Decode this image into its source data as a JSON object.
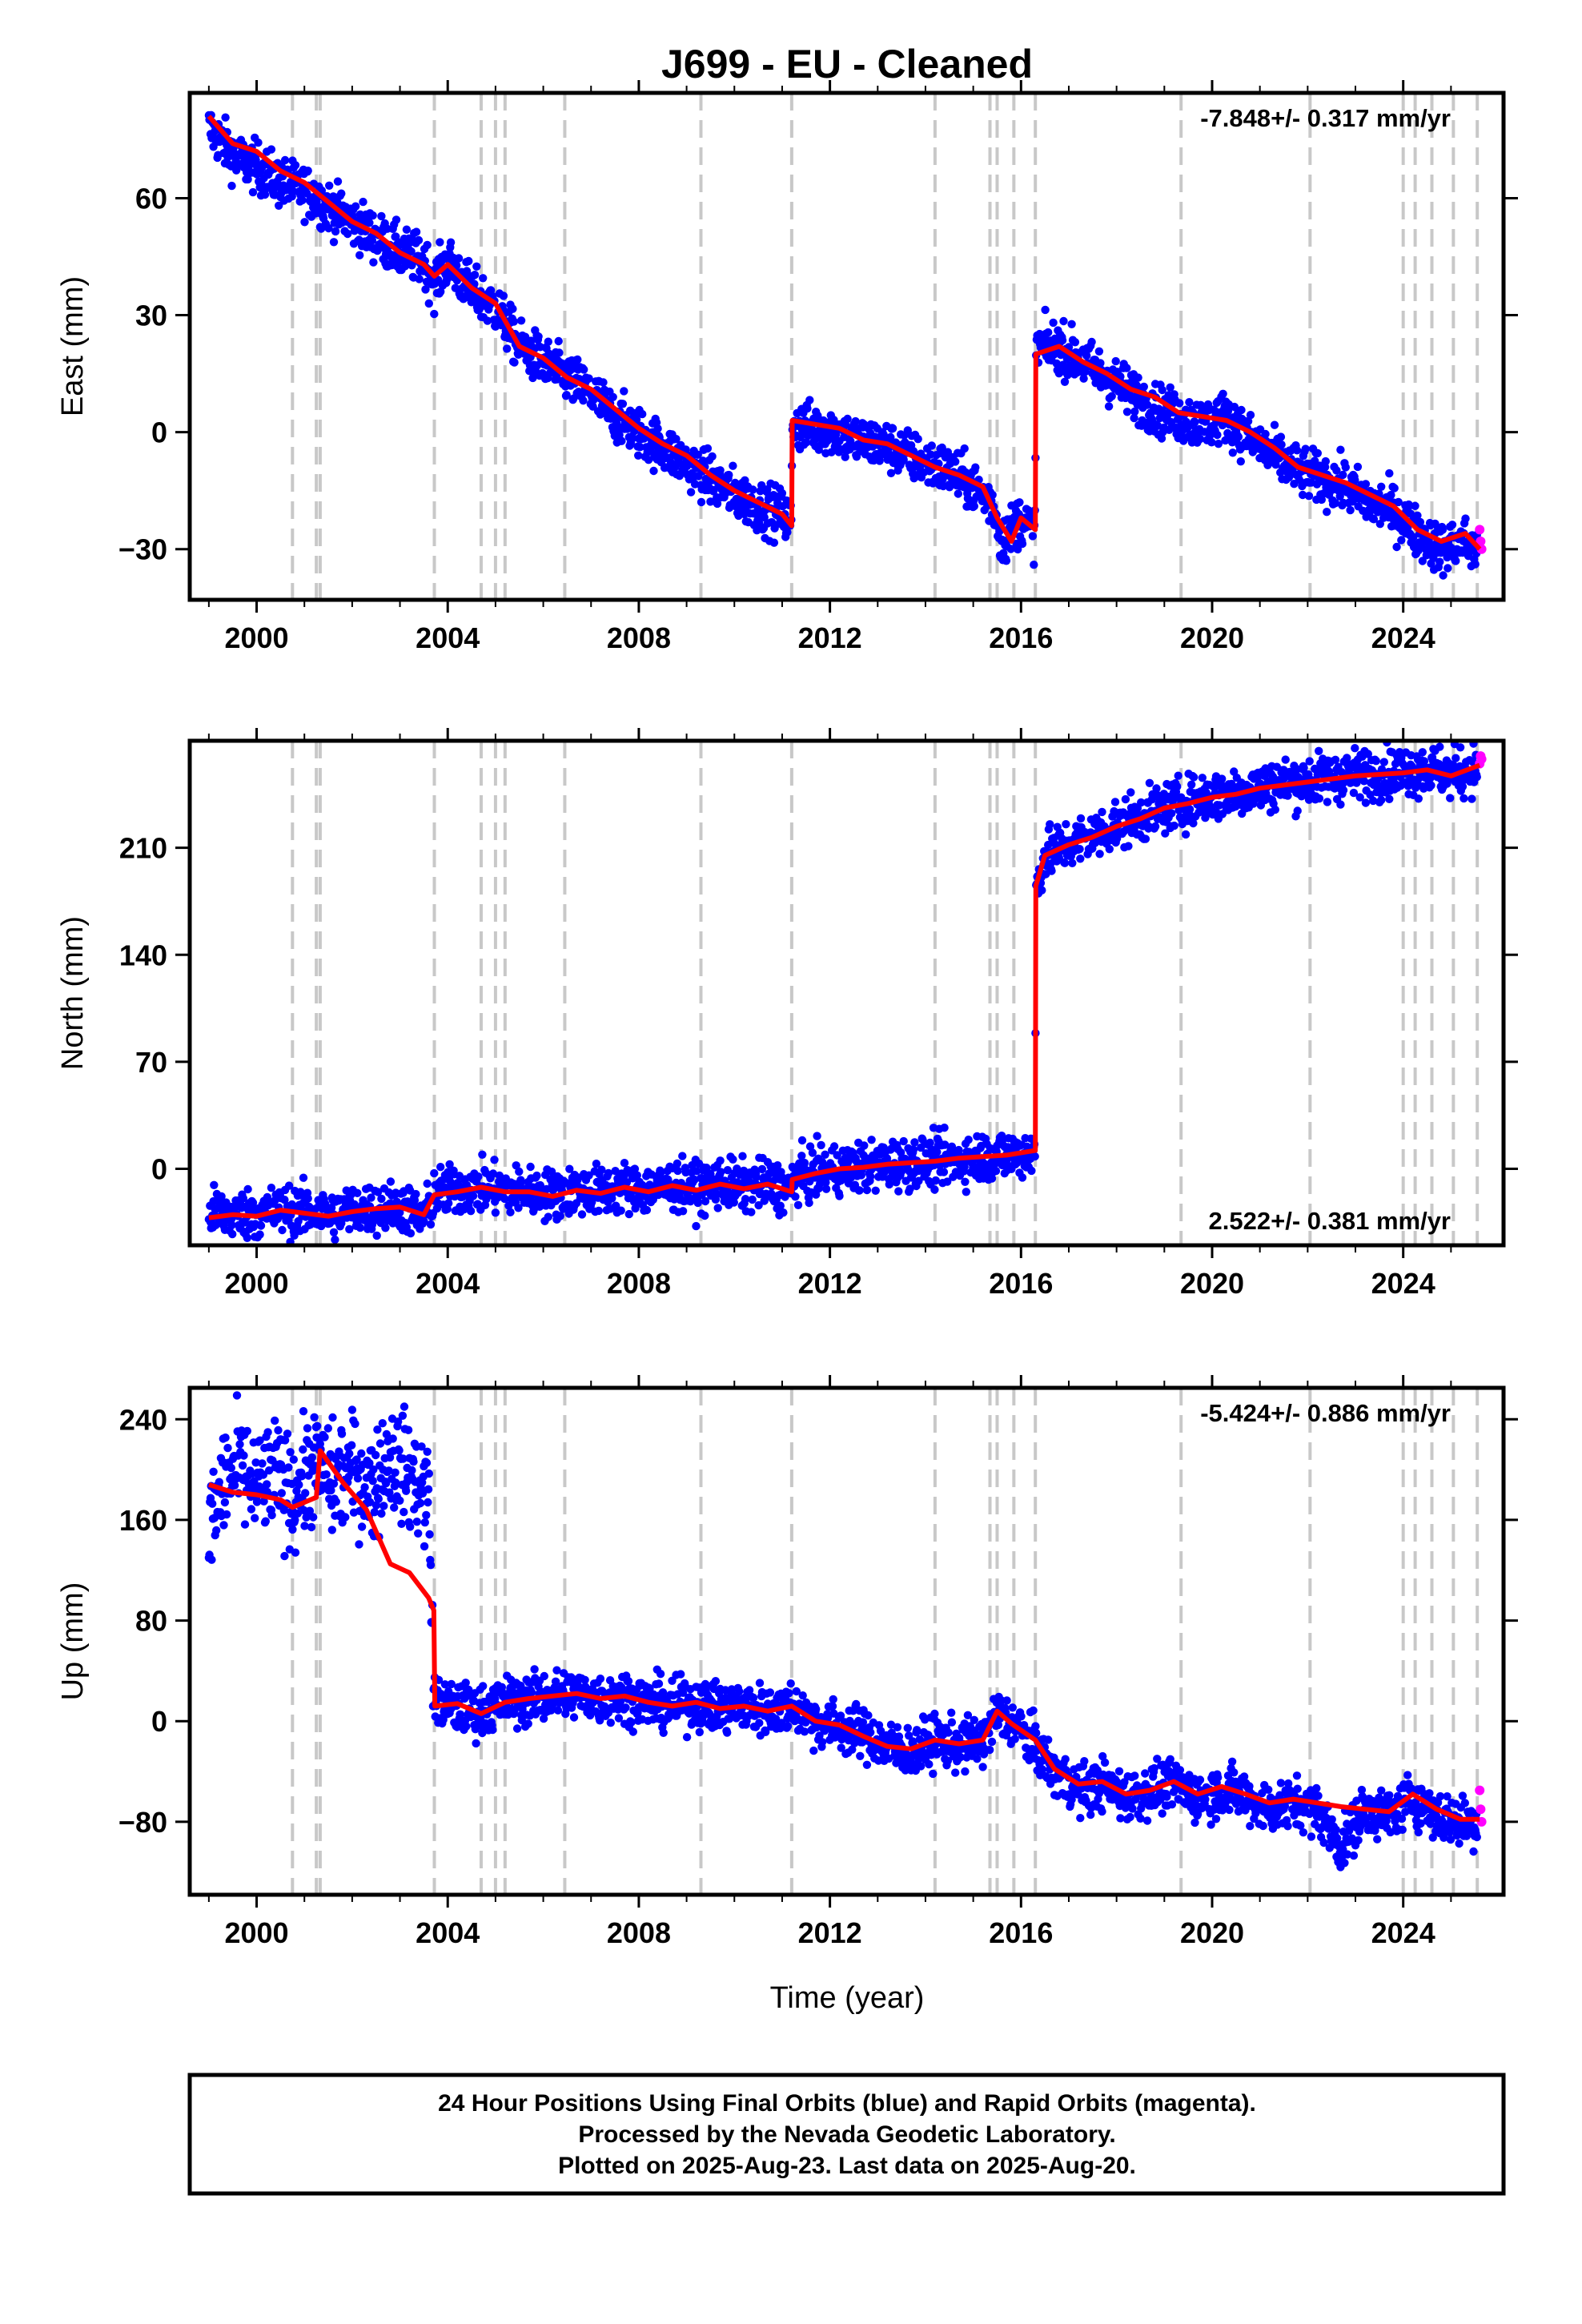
{
  "title": "J699  - EU - Cleaned",
  "xlabel": "Time (year)",
  "footer_lines": [
    "24 Hour Positions Using Final Orbits (blue) and Rapid Orbits (magenta).",
    "Processed by the Nevada Geodetic Laboratory.",
    "Plotted on 2025-Aug-23. Last data on 2025-Aug-20."
  ],
  "colors": {
    "final": "#0000ff",
    "rapid": "#ff00ff",
    "model": "#ff0000",
    "events": "#c8c8c8"
  },
  "xticks": [
    2000,
    2004,
    2008,
    2012,
    2016,
    2020,
    2024
  ],
  "xlim": [
    1998.6,
    2026.1
  ],
  "event_lines": [
    2000.75,
    2001.25,
    2001.33,
    2003.72,
    2004.7,
    2005.0,
    2005.2,
    2006.45,
    2009.3,
    2011.2,
    2014.2,
    2015.35,
    2015.5,
    2015.85,
    2016.3,
    2019.35,
    2022.05,
    2024.0,
    2024.25,
    2024.6,
    2025.05,
    2025.55
  ],
  "chart_data": [
    {
      "type": "scatter",
      "ylabel": "East (mm)",
      "ylim": [
        -43,
        87
      ],
      "yticks": [
        -30,
        0,
        30,
        60
      ],
      "rate": "-7.848+/- 0.317 mm/yr",
      "rate_position": "top-right",
      "series": [
        {
          "kind": "final",
          "x": [
            1999.0,
            1999.3,
            1999.6,
            2000.0,
            2000.5,
            2001.0,
            2001.5,
            2002.0,
            2002.5,
            2003.0,
            2003.5,
            2003.72,
            2004.0,
            2004.5,
            2005.0,
            2005.5,
            2006.0,
            2006.5,
            2007.0,
            2007.5,
            2008.0,
            2008.5,
            2009.0,
            2009.5,
            2010.0,
            2010.5,
            2011.0,
            2011.2,
            2011.21,
            2011.6,
            2012.0,
            2012.5,
            2013.0,
            2013.5,
            2014.0,
            2014.5,
            2015.0,
            2015.4,
            2015.6,
            2016.0,
            2016.3,
            2016.31,
            2016.8,
            2017.3,
            2017.8,
            2018.3,
            2018.8,
            2019.3,
            2019.8,
            2020.3,
            2020.8,
            2021.3,
            2021.8,
            2022.3,
            2022.8,
            2023.3,
            2023.8,
            2024.3,
            2024.8,
            2025.3,
            2025.55
          ],
          "y": [
            78,
            74,
            70,
            68,
            64,
            62,
            58,
            54,
            50,
            46,
            44,
            38,
            44,
            36,
            32,
            22,
            18,
            14,
            10,
            4,
            0,
            -4,
            -8,
            -12,
            -16,
            -19,
            -21,
            -23,
            2,
            1,
            1,
            -2,
            -3,
            -5,
            -8,
            -10,
            -14,
            -18,
            -28,
            -22,
            -26,
            22,
            22,
            18,
            14,
            10,
            6,
            4,
            2,
            4,
            -2,
            -6,
            -10,
            -12,
            -14,
            -18,
            -20,
            -26,
            -30,
            -28,
            -31
          ]
        },
        {
          "kind": "rapid",
          "x": [
            2025.6,
            2025.62,
            2025.64
          ],
          "y": [
            -25,
            -28,
            -30
          ]
        },
        {
          "kind": "model",
          "x": [
            1999.0,
            1999.5,
            2000.0,
            2000.5,
            2001.0,
            2001.5,
            2002.0,
            2002.5,
            2003.0,
            2003.5,
            2003.72,
            2004.0,
            2004.5,
            2005.0,
            2005.5,
            2006.0,
            2006.5,
            2007.0,
            2007.5,
            2008.0,
            2008.5,
            2009.0,
            2009.5,
            2010.0,
            2010.5,
            2011.0,
            2011.2,
            2011.21,
            2011.7,
            2012.2,
            2012.7,
            2013.2,
            2013.7,
            2014.2,
            2014.7,
            2015.2,
            2015.5,
            2015.8,
            2016.0,
            2016.3,
            2016.31,
            2016.8,
            2017.3,
            2017.8,
            2018.3,
            2018.8,
            2019.3,
            2019.8,
            2020.3,
            2020.8,
            2021.3,
            2021.8,
            2022.3,
            2022.8,
            2023.3,
            2023.8,
            2024.3,
            2024.8,
            2025.3,
            2025.6
          ],
          "y": [
            81,
            74,
            72,
            67,
            64,
            59,
            54,
            51,
            46,
            43,
            40,
            43,
            37,
            33,
            22,
            19,
            14,
            11,
            6,
            1,
            -3,
            -6,
            -11,
            -15,
            -18,
            -21,
            -24,
            3,
            2,
            1,
            -2,
            -3,
            -6,
            -9,
            -11,
            -14,
            -22,
            -28,
            -22,
            -25,
            20,
            22,
            18,
            15,
            11,
            9,
            5,
            4,
            3,
            0,
            -4,
            -9,
            -11,
            -13,
            -16,
            -19,
            -25,
            -28,
            -26,
            -30
          ]
        }
      ]
    },
    {
      "type": "scatter",
      "ylabel": "North (mm)",
      "ylim": [
        -50,
        280
      ],
      "yticks": [
        0,
        70,
        140,
        210
      ],
      "rate": "2.522+/- 0.381 mm/yr",
      "rate_position": "bottom-right",
      "series": [
        {
          "kind": "final",
          "x": [
            1999.0,
            1999.5,
            2000.0,
            2000.5,
            2001.0,
            2001.5,
            2002.0,
            2002.5,
            2003.0,
            2003.5,
            2003.72,
            2004.2,
            2004.7,
            2005.2,
            2005.7,
            2006.2,
            2006.7,
            2007.2,
            2007.7,
            2008.2,
            2008.7,
            2009.2,
            2009.7,
            2010.2,
            2010.7,
            2011.2,
            2011.21,
            2011.7,
            2012.2,
            2012.7,
            2013.2,
            2013.7,
            2014.2,
            2014.7,
            2015.2,
            2015.7,
            2016.3,
            2016.31,
            2016.5,
            2017.0,
            2017.5,
            2018.0,
            2018.5,
            2019.0,
            2019.5,
            2020.0,
            2020.5,
            2021.0,
            2021.5,
            2022.0,
            2022.5,
            2023.0,
            2023.5,
            2024.0,
            2024.5,
            2025.0,
            2025.55
          ],
          "y": [
            -28,
            -30,
            -29,
            -27,
            -28,
            -30,
            -27,
            -26,
            -24,
            -33,
            -16,
            -14,
            -12,
            -14,
            -15,
            -17,
            -14,
            -15,
            -12,
            -14,
            -11,
            -13,
            -9,
            -12,
            -10,
            -14,
            -6,
            -3,
            0,
            1,
            3,
            4,
            5,
            6,
            8,
            9,
            11,
            185,
            205,
            212,
            218,
            225,
            230,
            236,
            240,
            244,
            246,
            250,
            252,
            254,
            256,
            258,
            259,
            260,
            262,
            258,
            262
          ]
        },
        {
          "kind": "rapid",
          "x": [
            2025.6,
            2025.62,
            2025.64
          ],
          "y": [
            265,
            270,
            268
          ]
        },
        {
          "kind": "model",
          "x": [
            1999.0,
            1999.5,
            2000.0,
            2000.5,
            2001.0,
            2001.5,
            2002.0,
            2002.5,
            2003.0,
            2003.5,
            2003.72,
            2004.2,
            2004.7,
            2005.2,
            2005.7,
            2006.2,
            2006.7,
            2007.2,
            2007.7,
            2008.2,
            2008.7,
            2009.2,
            2009.7,
            2010.2,
            2010.7,
            2011.2,
            2011.21,
            2011.7,
            2012.2,
            2012.7,
            2013.2,
            2013.7,
            2014.2,
            2014.7,
            2015.2,
            2015.7,
            2016.3,
            2016.31,
            2016.5,
            2017.0,
            2017.5,
            2018.0,
            2018.5,
            2019.0,
            2019.5,
            2020.0,
            2020.5,
            2021.0,
            2021.5,
            2022.0,
            2022.5,
            2023.0,
            2023.5,
            2024.0,
            2024.5,
            2025.0,
            2025.6
          ],
          "y": [
            -32,
            -30,
            -31,
            -27,
            -29,
            -31,
            -28,
            -26,
            -25,
            -30,
            -17,
            -15,
            -12,
            -15,
            -15,
            -18,
            -14,
            -16,
            -12,
            -15,
            -11,
            -14,
            -10,
            -13,
            -10,
            -15,
            -7,
            -3,
            0,
            1,
            3,
            4,
            5,
            7,
            8,
            9,
            12,
            185,
            205,
            212,
            217,
            224,
            229,
            236,
            239,
            243,
            245,
            249,
            251,
            253,
            255,
            257,
            258,
            259,
            261,
            257,
            264
          ]
        }
      ]
    },
    {
      "type": "scatter",
      "ylabel": "Up (mm)",
      "ylim": [
        -138,
        265
      ],
      "yticks": [
        -80,
        0,
        80,
        160,
        240
      ],
      "rate": "-5.424+/- 0.886 mm/yr",
      "rate_position": "top-right",
      "series": [
        {
          "kind": "final",
          "x": [
            1999.0,
            1999.3,
            1999.6,
            2000.0,
            2000.4,
            2000.8,
            2001.2,
            2001.6,
            2002.0,
            2002.4,
            2002.8,
            2003.2,
            2003.6,
            2003.72,
            2004.2,
            2004.7,
            2005.2,
            2005.7,
            2006.2,
            2006.7,
            2007.2,
            2007.7,
            2008.2,
            2008.7,
            2009.2,
            2009.7,
            2010.2,
            2010.7,
            2011.2,
            2011.7,
            2012.2,
            2012.7,
            2013.2,
            2013.7,
            2014.2,
            2014.7,
            2015.2,
            2015.5,
            2015.8,
            2016.3,
            2016.7,
            2017.2,
            2017.7,
            2018.2,
            2018.7,
            2019.2,
            2019.7,
            2020.2,
            2020.7,
            2021.2,
            2021.7,
            2022.2,
            2022.7,
            2023.2,
            2023.7,
            2024.2,
            2024.7,
            2025.2,
            2025.55
          ],
          "y": [
            150,
            190,
            200,
            185,
            195,
            180,
            205,
            190,
            200,
            185,
            210,
            195,
            180,
            15,
            10,
            8,
            15,
            18,
            20,
            22,
            18,
            20,
            15,
            12,
            15,
            10,
            12,
            8,
            12,
            0,
            -5,
            -10,
            -20,
            -25,
            -15,
            -20,
            -15,
            5,
            0,
            -20,
            -40,
            -55,
            -50,
            -60,
            -55,
            -50,
            -60,
            -55,
            -60,
            -70,
            -65,
            -70,
            -100,
            -70,
            -75,
            -60,
            -75,
            -80,
            -80
          ]
        },
        {
          "kind": "rapid",
          "x": [
            2025.6,
            2025.62,
            2025.64
          ],
          "y": [
            -55,
            -70,
            -80
          ]
        },
        {
          "kind": "model",
          "x": [
            1999.0,
            1999.5,
            2000.0,
            2000.5,
            2000.75,
            2001.25,
            2001.33,
            2001.8,
            2002.3,
            2002.8,
            2003.2,
            2003.6,
            2003.71,
            2003.73,
            2004.2,
            2004.7,
            2005.2,
            2005.7,
            2006.2,
            2006.7,
            2007.2,
            2007.7,
            2008.2,
            2008.7,
            2009.2,
            2009.7,
            2010.2,
            2010.7,
            2011.2,
            2011.7,
            2012.2,
            2012.7,
            2013.2,
            2013.7,
            2014.2,
            2014.7,
            2015.2,
            2015.5,
            2015.8,
            2016.3,
            2016.7,
            2017.2,
            2017.7,
            2018.2,
            2018.7,
            2019.2,
            2019.7,
            2020.2,
            2020.7,
            2021.2,
            2021.7,
            2022.2,
            2022.7,
            2023.2,
            2023.7,
            2024.2,
            2024.7,
            2025.2,
            2025.6
          ],
          "y": [
            188,
            182,
            180,
            176,
            170,
            178,
            215,
            190,
            168,
            125,
            118,
            98,
            88,
            12,
            14,
            6,
            15,
            18,
            20,
            22,
            18,
            20,
            15,
            12,
            15,
            10,
            12,
            8,
            12,
            0,
            -3,
            -12,
            -20,
            -22,
            -15,
            -18,
            -15,
            8,
            -2,
            -15,
            -38,
            -50,
            -48,
            -58,
            -55,
            -48,
            -58,
            -52,
            -58,
            -65,
            -62,
            -65,
            -68,
            -70,
            -72,
            -58,
            -70,
            -78,
            -78
          ]
        }
      ]
    }
  ]
}
